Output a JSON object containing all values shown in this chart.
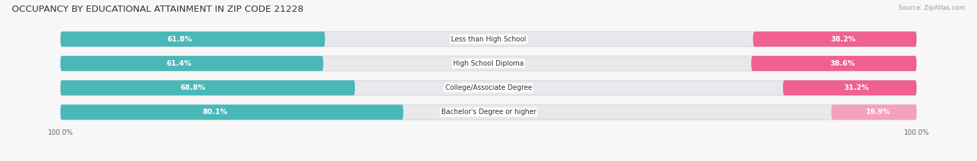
{
  "title": "OCCUPANCY BY EDUCATIONAL ATTAINMENT IN ZIP CODE 21228",
  "source": "Source: ZipAtlas.com",
  "categories": [
    "Less than High School",
    "High School Diploma",
    "College/Associate Degree",
    "Bachelor's Degree or higher"
  ],
  "owner_values": [
    61.8,
    61.4,
    68.8,
    80.1
  ],
  "renter_values": [
    38.2,
    38.6,
    31.2,
    19.9
  ],
  "owner_color": "#4ab8b8",
  "renter_colors": [
    "#f06090",
    "#f06090",
    "#f06090",
    "#f4a0c0"
  ],
  "bg_color": "#e8e8ec",
  "legend_owner_color": "#4ab8b8",
  "legend_renter_color": "#f06090",
  "title_fontsize": 9.5,
  "source_fontsize": 6.5,
  "val_fontsize": 7.5,
  "cat_fontsize": 7.0,
  "axis_fontsize": 7.0,
  "bar_height": 0.62,
  "background_color": "#f7f7f7",
  "xlim_left": -105,
  "xlim_right": 105
}
